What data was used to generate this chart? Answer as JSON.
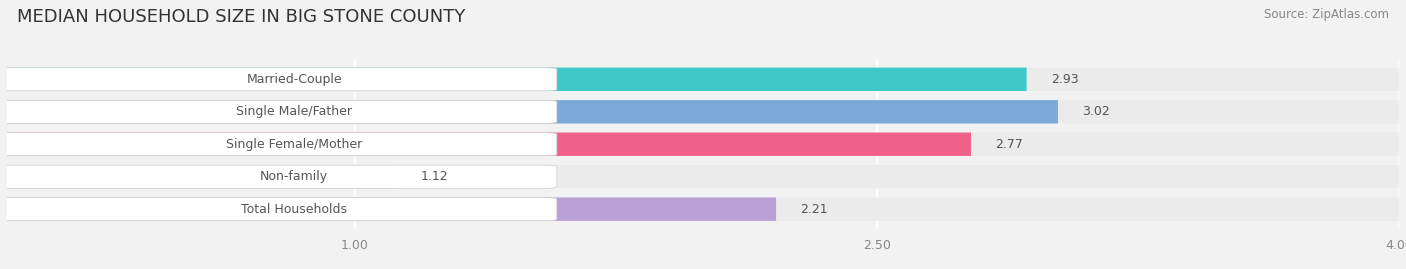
{
  "title": "MEDIAN HOUSEHOLD SIZE IN BIG STONE COUNTY",
  "source": "Source: ZipAtlas.com",
  "categories": [
    "Married-Couple",
    "Single Male/Father",
    "Single Female/Mother",
    "Non-family",
    "Total Households"
  ],
  "values": [
    2.93,
    3.02,
    2.77,
    1.12,
    2.21
  ],
  "bar_colors": [
    "#3ec8c8",
    "#7baad8",
    "#f0608a",
    "#f5c896",
    "#b89fd4"
  ],
  "xlim": [
    0,
    4.0
  ],
  "xstart": 0,
  "xticks": [
    1.0,
    2.5,
    4.0
  ],
  "background_color": "#f2f2f2",
  "bar_bg_color": "#e2e2e2",
  "row_bg_color": "#ebebeb",
  "title_fontsize": 13,
  "source_fontsize": 8.5,
  "label_fontsize": 9,
  "value_fontsize": 9
}
